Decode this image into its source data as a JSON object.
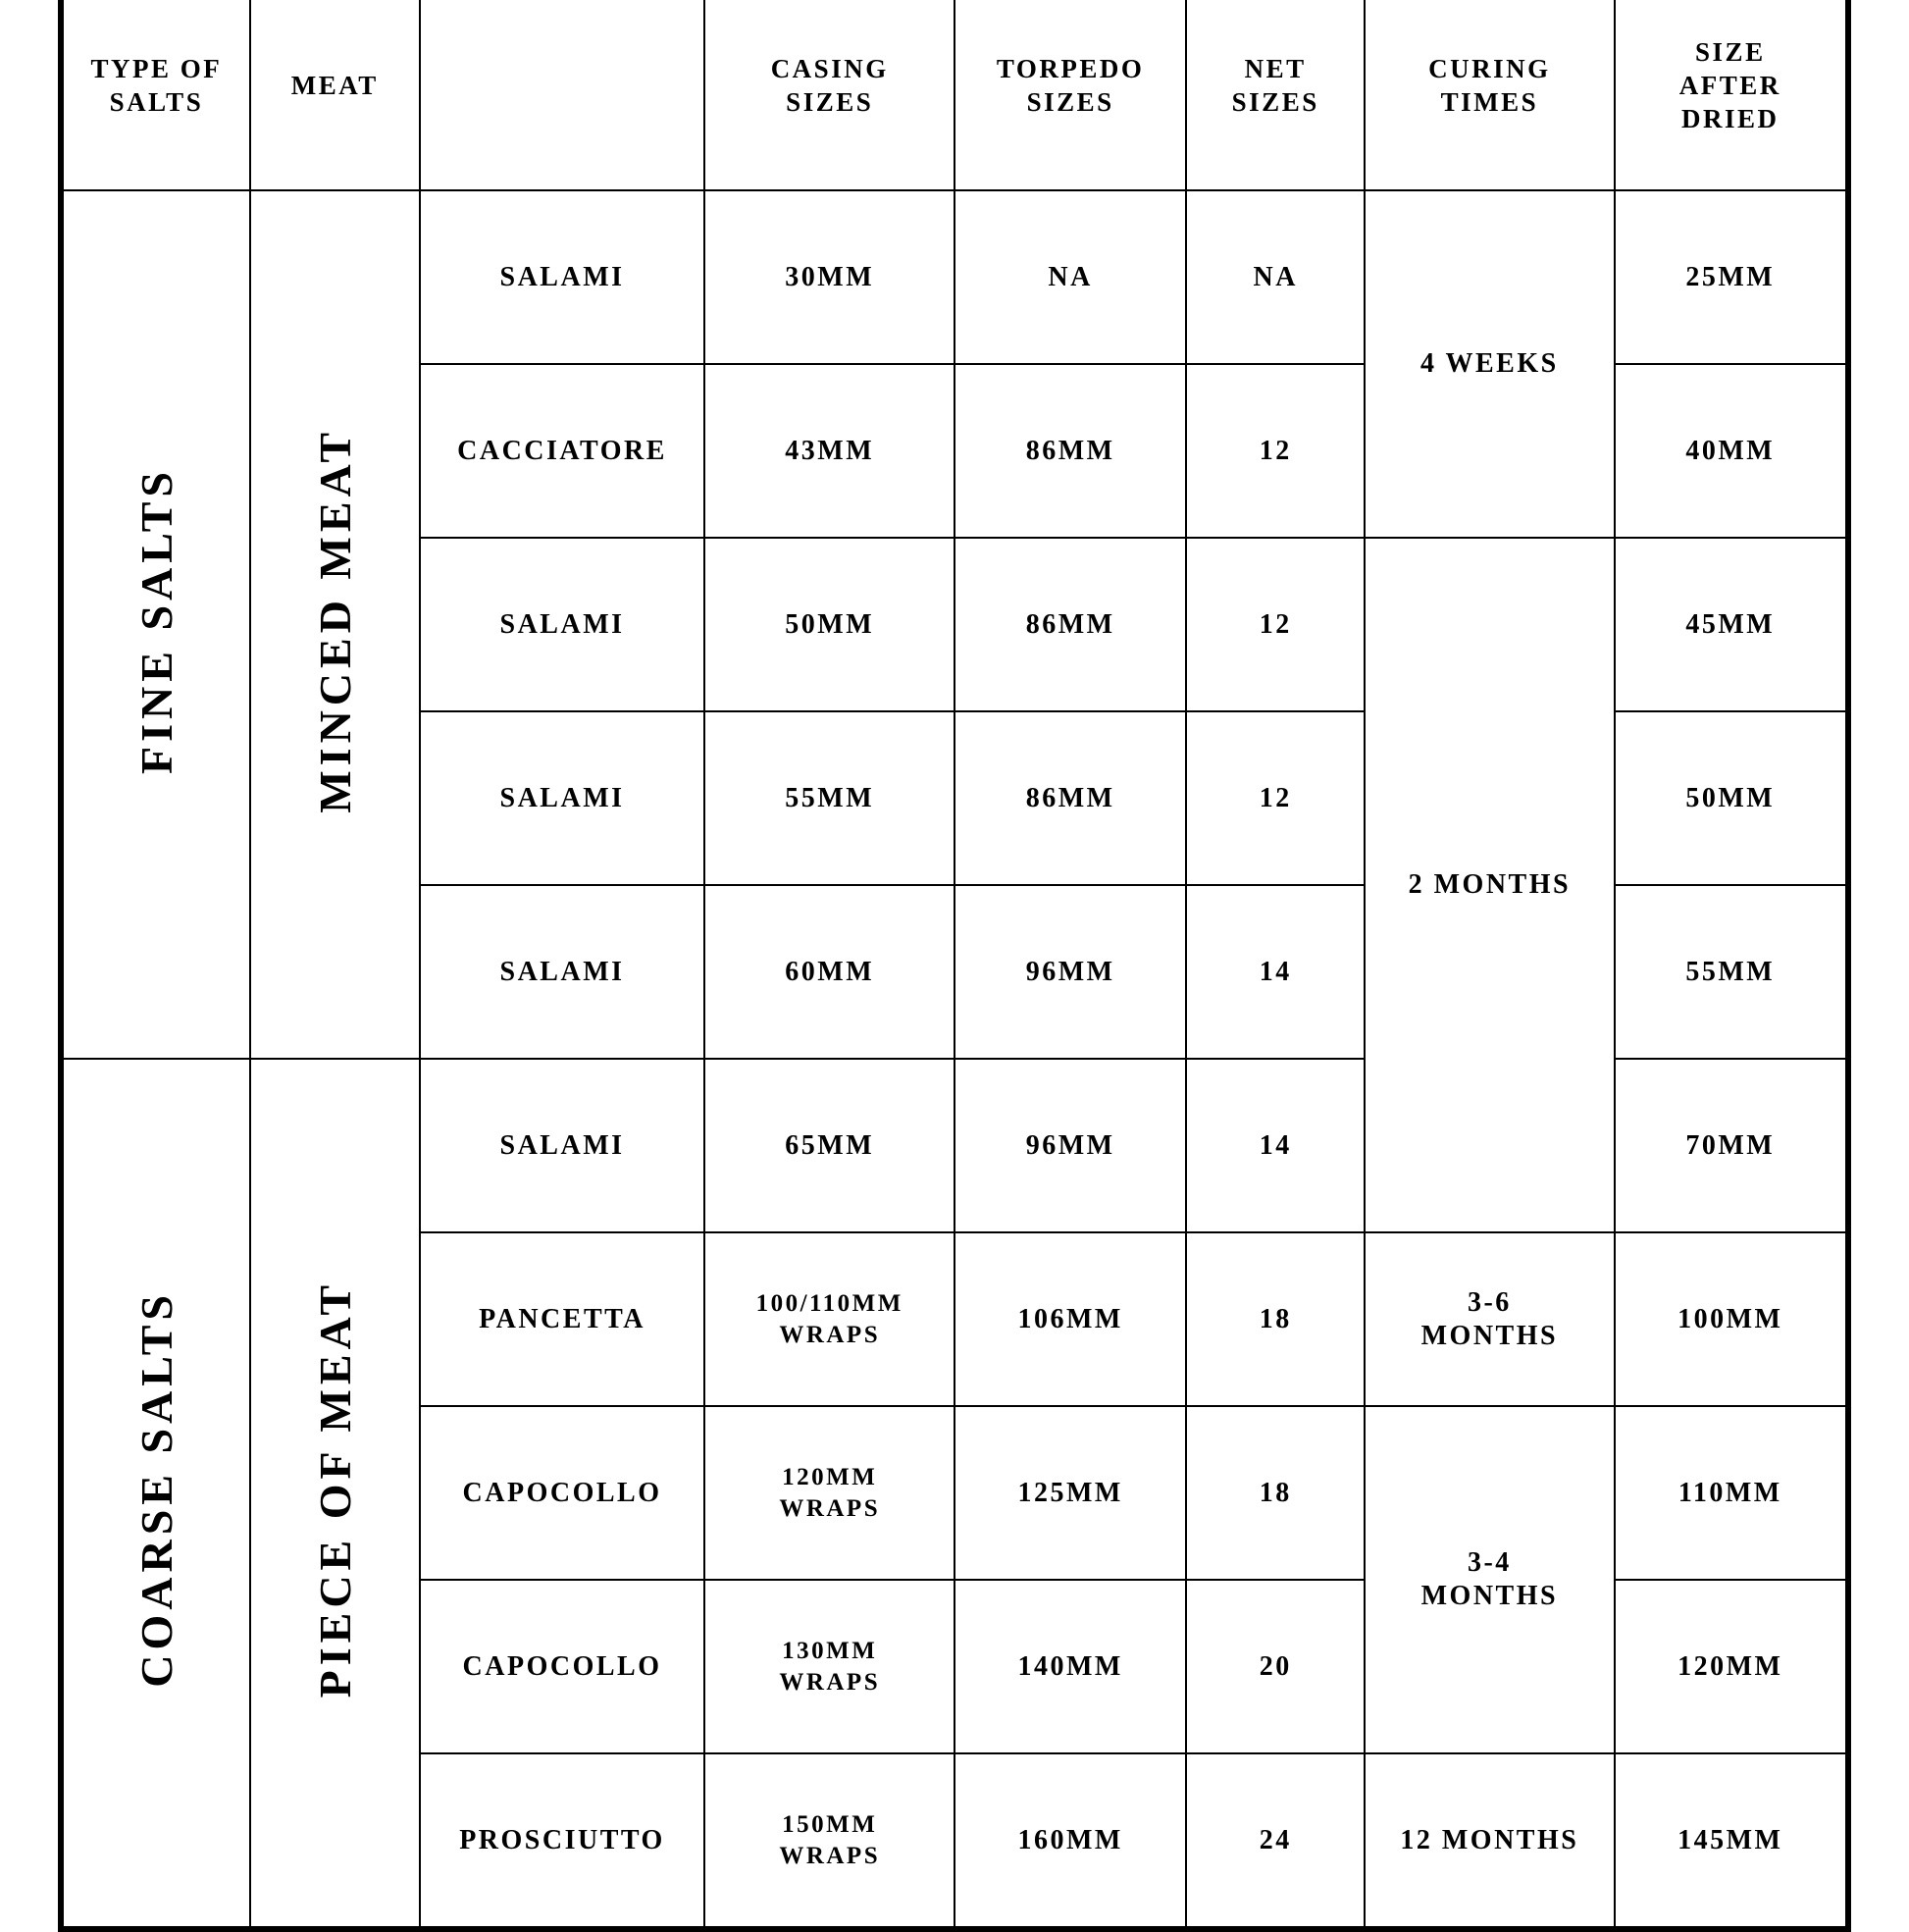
{
  "headers": {
    "salts": "TYPE OF\nSALTS",
    "meat": "MEAT",
    "name": "",
    "casing": "CASING\nSIZES",
    "torpedo": "TORPEDO\nSIZES",
    "net": "NET\nSIZES",
    "curing": "CURING\nTIMES",
    "dried": "SIZE\nAFTER\nDRIED"
  },
  "groups": {
    "fine": "FINE SALTS",
    "coarse": "COARSE SALTS",
    "minced": "MINCED MEAT",
    "piece": "PIECE OF MEAT"
  },
  "curing": {
    "w4": "4 WEEKS",
    "m2": "2 MONTHS",
    "m36": "3-6\nMONTHS",
    "m34": "3-4\nMONTHS",
    "m12": "12 MONTHS"
  },
  "rows": {
    "r1": {
      "name": "SALAMI",
      "casing": "30MM",
      "torpedo": "NA",
      "net": "NA",
      "dried": "25MM"
    },
    "r2": {
      "name": "CACCIATORE",
      "casing": "43MM",
      "torpedo": "86MM",
      "net": "12",
      "dried": "40MM"
    },
    "r3": {
      "name": "SALAMI",
      "casing": "50MM",
      "torpedo": "86MM",
      "net": "12",
      "dried": "45MM"
    },
    "r4": {
      "name": "SALAMI",
      "casing": "55MM",
      "torpedo": "86MM",
      "net": "12",
      "dried": "50MM"
    },
    "r5": {
      "name": "SALAMI",
      "casing": "60MM",
      "torpedo": "96MM",
      "net": "14",
      "dried": "55MM"
    },
    "r6": {
      "name": "SALAMI",
      "casing": "65MM",
      "torpedo": "96MM",
      "net": "14",
      "dried": "70MM"
    },
    "r7": {
      "name": "PANCETTA",
      "casing": "100/110MM\nWRAPS",
      "torpedo": "106MM",
      "net": "18",
      "dried": "100MM"
    },
    "r8": {
      "name": "CAPOCOLLO",
      "casing": "120MM\nWRAPS",
      "torpedo": "125MM",
      "net": "18",
      "dried": "110MM"
    },
    "r9": {
      "name": "CAPOCOLLO",
      "casing": "130MM\nWRAPS",
      "torpedo": "140MM",
      "net": "20",
      "dried": "120MM"
    },
    "r10": {
      "name": "PROSCIUTTO",
      "casing": "150MM\nWRAPS",
      "torpedo": "160MM",
      "net": "24",
      "dried": "145MM"
    }
  },
  "style": {
    "border_color": "#000000",
    "background": "#ffffff",
    "text_color": "#000000",
    "header_fontsize": 27,
    "cell_fontsize": 28,
    "vertical_fontsize": 46,
    "letter_spacing": 2.5
  }
}
